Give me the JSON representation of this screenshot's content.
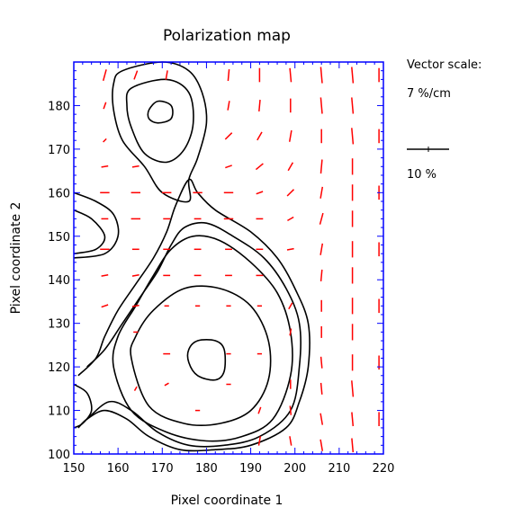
{
  "chart_data": {
    "type": "polarization-map",
    "title": "Polarization map",
    "xlabel": "Pixel coordinate 1",
    "ylabel": "Pixel coordinate 2",
    "xlim": [
      150,
      220
    ],
    "ylim": [
      100,
      190
    ],
    "xticks": [
      150,
      160,
      170,
      180,
      190,
      200,
      210,
      220
    ],
    "yticks": [
      100,
      110,
      120,
      130,
      140,
      150,
      160,
      170,
      180
    ],
    "grid": false,
    "contour_color": "#000000",
    "vector_color": "#ff0000",
    "axis_color": "#0000ff",
    "vector_scale": {
      "title": "Vector scale:",
      "value": "7 %/cm",
      "reference_label": "10 %",
      "reference_percent": 10
    },
    "contours": [
      {
        "id": "north-blob-outer",
        "points": [
          [
            161,
            188
          ],
          [
            170,
            190
          ],
          [
            176,
            188
          ],
          [
            179,
            183
          ],
          [
            180,
            176
          ],
          [
            178,
            168
          ],
          [
            176,
            163
          ],
          [
            176,
            158
          ],
          [
            170,
            160
          ],
          [
            166,
            166
          ],
          [
            161,
            172
          ],
          [
            159,
            179
          ],
          [
            159,
            185
          ]
        ]
      },
      {
        "id": "north-blob-inner",
        "points": [
          [
            163,
            184
          ],
          [
            171,
            186
          ],
          [
            176,
            183
          ],
          [
            177,
            176
          ],
          [
            175,
            170
          ],
          [
            171,
            167
          ],
          [
            166,
            169
          ],
          [
            163,
            175
          ],
          [
            162,
            180
          ]
        ]
      },
      {
        "id": "north-peak",
        "points": [
          [
            167,
            179
          ],
          [
            169,
            181
          ],
          [
            172,
            180
          ],
          [
            172,
            177
          ],
          [
            169,
            176
          ],
          [
            167,
            177
          ]
        ]
      },
      {
        "id": "west-knot-outer",
        "points": [
          [
            150,
            160
          ],
          [
            155,
            158
          ],
          [
            159,
            155
          ],
          [
            160,
            150
          ],
          [
            157,
            146
          ],
          [
            150,
            145
          ]
        ]
      },
      {
        "id": "west-knot-inner",
        "points": [
          [
            150,
            156
          ],
          [
            154,
            154
          ],
          [
            157,
            150
          ],
          [
            155,
            147
          ],
          [
            150,
            146
          ]
        ]
      },
      {
        "id": "main-outer",
        "points": [
          [
            151,
            106
          ],
          [
            153,
            108
          ],
          [
            157,
            110
          ],
          [
            162,
            108
          ],
          [
            167,
            104
          ],
          [
            174,
            101
          ],
          [
            182,
            101
          ],
          [
            190,
            102
          ],
          [
            198,
            106
          ],
          [
            201,
            112
          ],
          [
            203,
            120
          ],
          [
            203,
            130
          ],
          [
            200,
            138
          ],
          [
            196,
            145
          ],
          [
            190,
            151
          ],
          [
            182,
            156
          ],
          [
            178,
            160
          ],
          [
            176,
            163
          ],
          [
            173,
            157
          ],
          [
            171,
            151
          ],
          [
            168,
            145
          ],
          [
            164,
            139
          ],
          [
            160,
            133
          ],
          [
            157,
            127
          ],
          [
            155,
            122
          ],
          [
            151,
            118
          ]
        ]
      },
      {
        "id": "main-second",
        "points": [
          [
            153,
            108
          ],
          [
            158,
            112
          ],
          [
            163,
            110
          ],
          [
            169,
            105
          ],
          [
            176,
            102
          ],
          [
            184,
            102
          ],
          [
            192,
            104
          ],
          [
            199,
            110
          ],
          [
            201,
            120
          ],
          [
            201,
            130
          ],
          [
            198,
            138
          ],
          [
            193,
            145
          ],
          [
            186,
            150
          ],
          [
            180,
            153
          ],
          [
            175,
            152
          ],
          [
            172,
            148
          ],
          [
            169,
            142
          ],
          [
            165,
            136
          ],
          [
            161,
            130
          ],
          [
            157,
            124
          ],
          [
            153,
            120
          ]
        ]
      },
      {
        "id": "main-third",
        "points": [
          [
            159,
            120
          ],
          [
            163,
            110
          ],
          [
            171,
            105
          ],
          [
            180,
            103
          ],
          [
            188,
            104
          ],
          [
            195,
            108
          ],
          [
            199,
            118
          ],
          [
            199,
            128
          ],
          [
            196,
            137
          ],
          [
            190,
            144
          ],
          [
            183,
            149
          ],
          [
            177,
            150
          ],
          [
            172,
            147
          ],
          [
            168,
            141
          ],
          [
            164,
            134
          ],
          [
            160,
            127
          ]
        ]
      },
      {
        "id": "main-fourth",
        "points": [
          [
            163,
            122
          ],
          [
            167,
            111
          ],
          [
            175,
            107
          ],
          [
            183,
            107
          ],
          [
            190,
            110
          ],
          [
            194,
            117
          ],
          [
            194,
            126
          ],
          [
            190,
            134
          ],
          [
            183,
            138
          ],
          [
            175,
            138
          ],
          [
            168,
            133
          ],
          [
            164,
            127
          ]
        ]
      },
      {
        "id": "main-peak",
        "points": [
          [
            176,
            121
          ],
          [
            178,
            118
          ],
          [
            182,
            117
          ],
          [
            184,
            119
          ],
          [
            184,
            124
          ],
          [
            182,
            126
          ],
          [
            178,
            126
          ],
          [
            176,
            124
          ]
        ]
      },
      {
        "id": "sw-fragment",
        "points": [
          [
            150,
            116
          ],
          [
            153,
            114
          ],
          [
            154,
            110
          ],
          [
            152,
            107
          ],
          [
            150,
            106
          ]
        ]
      }
    ],
    "vectors": [
      {
        "x": 157,
        "y": 187,
        "p": 5,
        "angle": 75
      },
      {
        "x": 157,
        "y": 180,
        "p": 3,
        "angle": 70
      },
      {
        "x": 157,
        "y": 172,
        "p": 2,
        "angle": 45
      },
      {
        "x": 157,
        "y": 166,
        "p": 3,
        "angle": 10
      },
      {
        "x": 157,
        "y": 160,
        "p": 4,
        "angle": 0
      },
      {
        "x": 157,
        "y": 154,
        "p": 3,
        "angle": 0
      },
      {
        "x": 157,
        "y": 147,
        "p": 4,
        "angle": 0
      },
      {
        "x": 157,
        "y": 141,
        "p": 3,
        "angle": 10
      },
      {
        "x": 157,
        "y": 134,
        "p": 3,
        "angle": 20
      },
      {
        "x": 164,
        "y": 187,
        "p": 4,
        "angle": 70
      },
      {
        "x": 164,
        "y": 166,
        "p": 3,
        "angle": 10
      },
      {
        "x": 164,
        "y": 160,
        "p": 4,
        "angle": 0
      },
      {
        "x": 164,
        "y": 154,
        "p": 4,
        "angle": 0
      },
      {
        "x": 164,
        "y": 147,
        "p": 3,
        "angle": 0
      },
      {
        "x": 164,
        "y": 141,
        "p": 3,
        "angle": 10
      },
      {
        "x": 164,
        "y": 134,
        "p": 3,
        "angle": 10
      },
      {
        "x": 164,
        "y": 128,
        "p": 2,
        "angle": 0
      },
      {
        "x": 164,
        "y": 115,
        "p": 2,
        "angle": 60
      },
      {
        "x": 171,
        "y": 187,
        "p": 4,
        "angle": 80
      },
      {
        "x": 171,
        "y": 160,
        "p": 4,
        "angle": 0
      },
      {
        "x": 171,
        "y": 154,
        "p": 3,
        "angle": 0
      },
      {
        "x": 171,
        "y": 147,
        "p": 3,
        "angle": 0
      },
      {
        "x": 171,
        "y": 141,
        "p": 3,
        "angle": 0
      },
      {
        "x": 171,
        "y": 134,
        "p": 2,
        "angle": 0
      },
      {
        "x": 171,
        "y": 123,
        "p": 3,
        "angle": 0
      },
      {
        "x": 171,
        "y": 116,
        "p": 2,
        "angle": 30
      },
      {
        "x": 178,
        "y": 160,
        "p": 4,
        "angle": 0
      },
      {
        "x": 178,
        "y": 154,
        "p": 3,
        "angle": 0
      },
      {
        "x": 178,
        "y": 147,
        "p": 3,
        "angle": 0
      },
      {
        "x": 178,
        "y": 141,
        "p": 3,
        "angle": 0
      },
      {
        "x": 178,
        "y": 134,
        "p": 2,
        "angle": 0
      },
      {
        "x": 178,
        "y": 110,
        "p": 2,
        "angle": 0
      },
      {
        "x": 185,
        "y": 187,
        "p": 5,
        "angle": 85
      },
      {
        "x": 185,
        "y": 180,
        "p": 4,
        "angle": 80
      },
      {
        "x": 185,
        "y": 173,
        "p": 4,
        "angle": 45
      },
      {
        "x": 185,
        "y": 166,
        "p": 3,
        "angle": 20
      },
      {
        "x": 185,
        "y": 160,
        "p": 4,
        "angle": 0
      },
      {
        "x": 185,
        "y": 154,
        "p": 4,
        "angle": 0
      },
      {
        "x": 185,
        "y": 147,
        "p": 3,
        "angle": 0
      },
      {
        "x": 185,
        "y": 141,
        "p": 3,
        "angle": 0
      },
      {
        "x": 185,
        "y": 134,
        "p": 2,
        "angle": 0
      },
      {
        "x": 185,
        "y": 123,
        "p": 2,
        "angle": 0
      },
      {
        "x": 185,
        "y": 116,
        "p": 2,
        "angle": 0
      },
      {
        "x": 192,
        "y": 187,
        "p": 6,
        "angle": 90
      },
      {
        "x": 192,
        "y": 180,
        "p": 5,
        "angle": 85
      },
      {
        "x": 192,
        "y": 173,
        "p": 4,
        "angle": 60
      },
      {
        "x": 192,
        "y": 166,
        "p": 4,
        "angle": 40
      },
      {
        "x": 192,
        "y": 160,
        "p": 3,
        "angle": 20
      },
      {
        "x": 192,
        "y": 154,
        "p": 3,
        "angle": 0
      },
      {
        "x": 192,
        "y": 147,
        "p": 3,
        "angle": 0
      },
      {
        "x": 192,
        "y": 141,
        "p": 3,
        "angle": 0
      },
      {
        "x": 192,
        "y": 134,
        "p": 2,
        "angle": 0
      },
      {
        "x": 192,
        "y": 123,
        "p": 2,
        "angle": 0
      },
      {
        "x": 192,
        "y": 110,
        "p": 3,
        "angle": 70
      },
      {
        "x": 192,
        "y": 103,
        "p": 4,
        "angle": 80
      },
      {
        "x": 199,
        "y": 187,
        "p": 6,
        "angle": 95
      },
      {
        "x": 199,
        "y": 180,
        "p": 6,
        "angle": 90
      },
      {
        "x": 199,
        "y": 173,
        "p": 5,
        "angle": 80
      },
      {
        "x": 199,
        "y": 166,
        "p": 4,
        "angle": 60
      },
      {
        "x": 199,
        "y": 160,
        "p": 4,
        "angle": 45
      },
      {
        "x": 199,
        "y": 154,
        "p": 3,
        "angle": 30
      },
      {
        "x": 199,
        "y": 147,
        "p": 3,
        "angle": 10
      },
      {
        "x": 199,
        "y": 134,
        "p": 3,
        "angle": 60
      },
      {
        "x": 199,
        "y": 128,
        "p": 3,
        "angle": 80
      },
      {
        "x": 199,
        "y": 116,
        "p": 4,
        "angle": 90
      },
      {
        "x": 199,
        "y": 110,
        "p": 4,
        "angle": 95
      },
      {
        "x": 199,
        "y": 103,
        "p": 4,
        "angle": 100
      },
      {
        "x": 206,
        "y": 187,
        "p": 7,
        "angle": 95
      },
      {
        "x": 206,
        "y": 180,
        "p": 7,
        "angle": 95
      },
      {
        "x": 206,
        "y": 173,
        "p": 6,
        "angle": 90
      },
      {
        "x": 206,
        "y": 166,
        "p": 6,
        "angle": 85
      },
      {
        "x": 206,
        "y": 160,
        "p": 5,
        "angle": 80
      },
      {
        "x": 206,
        "y": 154,
        "p": 5,
        "angle": 75
      },
      {
        "x": 206,
        "y": 147,
        "p": 5,
        "angle": 80
      },
      {
        "x": 206,
        "y": 141,
        "p": 5,
        "angle": 85
      },
      {
        "x": 206,
        "y": 134,
        "p": 5,
        "angle": 90
      },
      {
        "x": 206,
        "y": 128,
        "p": 5,
        "angle": 90
      },
      {
        "x": 206,
        "y": 121,
        "p": 5,
        "angle": 95
      },
      {
        "x": 206,
        "y": 115,
        "p": 5,
        "angle": 95
      },
      {
        "x": 206,
        "y": 108,
        "p": 5,
        "angle": 100
      },
      {
        "x": 206,
        "y": 102,
        "p": 5,
        "angle": 100
      },
      {
        "x": 213,
        "y": 187,
        "p": 7,
        "angle": 95
      },
      {
        "x": 213,
        "y": 180,
        "p": 7,
        "angle": 95
      },
      {
        "x": 213,
        "y": 173,
        "p": 7,
        "angle": 95
      },
      {
        "x": 213,
        "y": 166,
        "p": 7,
        "angle": 90
      },
      {
        "x": 213,
        "y": 160,
        "p": 7,
        "angle": 90
      },
      {
        "x": 213,
        "y": 154,
        "p": 7,
        "angle": 90
      },
      {
        "x": 213,
        "y": 147,
        "p": 7,
        "angle": 90
      },
      {
        "x": 213,
        "y": 141,
        "p": 7,
        "angle": 90
      },
      {
        "x": 213,
        "y": 134,
        "p": 7,
        "angle": 90
      },
      {
        "x": 213,
        "y": 128,
        "p": 7,
        "angle": 90
      },
      {
        "x": 213,
        "y": 121,
        "p": 7,
        "angle": 90
      },
      {
        "x": 213,
        "y": 115,
        "p": 7,
        "angle": 95
      },
      {
        "x": 213,
        "y": 108,
        "p": 6,
        "angle": 95
      },
      {
        "x": 213,
        "y": 102,
        "p": 6,
        "angle": 95
      },
      {
        "x": 219,
        "y": 187,
        "p": 6,
        "angle": 90
      },
      {
        "x": 219,
        "y": 173,
        "p": 6,
        "angle": 90
      },
      {
        "x": 219,
        "y": 160,
        "p": 6,
        "angle": 90
      },
      {
        "x": 219,
        "y": 147,
        "p": 6,
        "angle": 90
      },
      {
        "x": 219,
        "y": 134,
        "p": 6,
        "angle": 90
      },
      {
        "x": 219,
        "y": 121,
        "p": 6,
        "angle": 90
      },
      {
        "x": 219,
        "y": 108,
        "p": 6,
        "angle": 90
      }
    ]
  }
}
